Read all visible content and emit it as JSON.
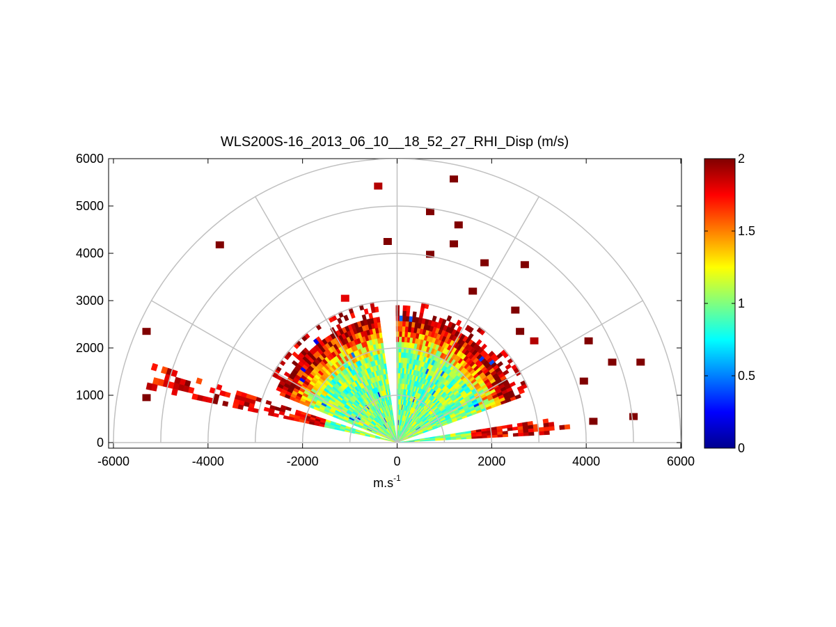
{
  "chart_data": {
    "type": "heatmap",
    "subtype": "polar-rhi",
    "title": "WLS200S-16_2013_06_10__18_52_27_RHI_Disp (m/s)",
    "xlabel_base": "m.s",
    "xlabel_exp": "-1",
    "ylabel": "",
    "xlim": [
      -6000,
      6000
    ],
    "ylim": [
      0,
      6000
    ],
    "x_ticks": [
      -6000,
      -4000,
      -2000,
      0,
      2000,
      4000,
      6000
    ],
    "x_tick_labels": [
      "-6000",
      "-4000",
      "-2000",
      "0",
      "2000",
      "4000",
      "6000"
    ],
    "y_ticks": [
      0,
      1000,
      2000,
      3000,
      4000,
      5000,
      6000
    ],
    "y_tick_labels": [
      "0",
      "1000",
      "2000",
      "3000",
      "4000",
      "5000",
      "6000"
    ],
    "polar_rings": [
      1000,
      2000,
      3000,
      4000,
      5000,
      6000
    ],
    "polar_spokes_deg": [
      0,
      30,
      60,
      90,
      120,
      150,
      180
    ],
    "colorbar": {
      "min": 0,
      "max": 2,
      "ticks": [
        0,
        0.5,
        1,
        1.5,
        2
      ],
      "tick_labels": [
        "0",
        "0.5",
        "1",
        "1.5",
        "2"
      ],
      "colormap": "jet"
    },
    "scan_sectors": [
      {
        "name": "left-low-beam",
        "az_from_deg": 162,
        "az_to_deg": 168,
        "range_m": [
          0,
          5400
        ]
      },
      {
        "name": "left-main",
        "az_from_deg": 98,
        "az_to_deg": 158,
        "range_m": [
          0,
          3000
        ]
      },
      {
        "name": "right-main",
        "az_from_deg": 20,
        "az_to_deg": 90,
        "range_m": [
          0,
          3000
        ]
      },
      {
        "name": "right-low-beam",
        "az_from_deg": 3,
        "az_to_deg": 8,
        "range_m": [
          0,
          3700
        ]
      }
    ],
    "value_profile": {
      "near_range_value": 1.0,
      "far_range_value": 2.0,
      "transition_range_m": [
        1800,
        2600
      ]
    },
    "isolated_cells": [
      {
        "x": -400,
        "y": 5420,
        "v": 1.9
      },
      {
        "x": 1200,
        "y": 5570,
        "v": 2.0
      },
      {
        "x": -3750,
        "y": 4180,
        "v": 2.0
      },
      {
        "x": 700,
        "y": 4880,
        "v": 2.0
      },
      {
        "x": 1300,
        "y": 4600,
        "v": 2.0
      },
      {
        "x": -200,
        "y": 4250,
        "v": 2.0
      },
      {
        "x": 1200,
        "y": 4200,
        "v": 2.0
      },
      {
        "x": 700,
        "y": 3980,
        "v": 2.0
      },
      {
        "x": 1850,
        "y": 3800,
        "v": 2.0
      },
      {
        "x": 2700,
        "y": 3760,
        "v": 2.0
      },
      {
        "x": -5300,
        "y": 2350,
        "v": 2.0
      },
      {
        "x": 5150,
        "y": 1700,
        "v": 2.0
      },
      {
        "x": 4050,
        "y": 2150,
        "v": 2.0
      },
      {
        "x": 4550,
        "y": 1700,
        "v": 2.0
      },
      {
        "x": 3950,
        "y": 1300,
        "v": 2.0
      },
      {
        "x": 4150,
        "y": 450,
        "v": 2.0
      },
      {
        "x": 5000,
        "y": 550,
        "v": 2.0
      },
      {
        "x": -5300,
        "y": 950,
        "v": 2.0
      },
      {
        "x": 2900,
        "y": 2150,
        "v": 1.9
      },
      {
        "x": 2600,
        "y": 2350,
        "v": 2.0
      },
      {
        "x": 1600,
        "y": 3200,
        "v": 2.0
      },
      {
        "x": 2500,
        "y": 2800,
        "v": 2.0
      },
      {
        "x": -1100,
        "y": 3050,
        "v": 1.8
      }
    ]
  }
}
